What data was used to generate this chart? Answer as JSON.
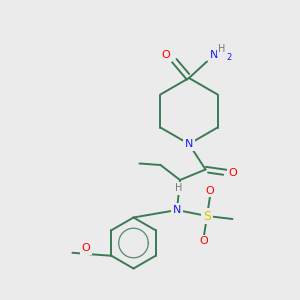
{
  "background_color": "#ebebeb",
  "bond_color": "#3a7a55",
  "atom_colors": {
    "O": "#ff0000",
    "N": "#1a1aff",
    "S": "#cccc00",
    "H": "#777777",
    "C": "#3a7a55"
  },
  "figsize": [
    3.0,
    3.0
  ],
  "dpi": 100
}
